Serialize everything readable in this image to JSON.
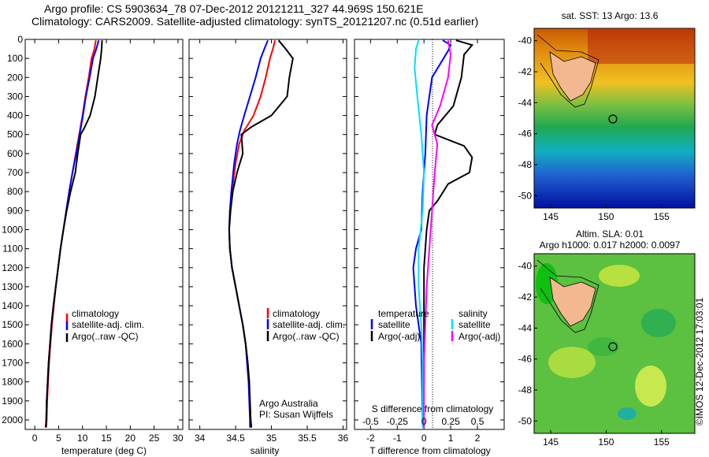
{
  "header": {
    "line1": "Argo profile: CS 5903634_78 07-Dec-2012 20121211_327 44.969S 150.621E",
    "line2": "Climatology: CARS2009. Satellite-adjusted climatology: synTS_20121207.nc (0.51d earlier)"
  },
  "colors": {
    "climatology": "#ff0000",
    "satellite": "#0000ff",
    "argo": "#000000",
    "satellite_salinity": "#00e0ff",
    "argo_salinity_adj": "#ff00ff"
  },
  "chart_data": [
    {
      "type": "line",
      "panel": "temperature",
      "xlabel": "temperature (deg C)",
      "ylabel": "",
      "xlim": [
        -2,
        31
      ],
      "ylim": [
        2050,
        0
      ],
      "x_ticks": [
        "0",
        "5",
        "10",
        "15",
        "20",
        "25",
        "30"
      ],
      "x_tick_values": [
        0,
        5,
        10,
        15,
        20,
        25,
        30
      ],
      "y_ticks": [
        "0",
        "100",
        "200",
        "300",
        "400",
        "500",
        "600",
        "700",
        "800",
        "900",
        "1000",
        "1100",
        "1200",
        "1300",
        "1400",
        "1500",
        "1600",
        "1700",
        "1800",
        "1900",
        "2000"
      ],
      "y_tick_values": [
        0,
        100,
        200,
        300,
        400,
        500,
        600,
        700,
        800,
        900,
        1000,
        1100,
        1200,
        1300,
        1400,
        1500,
        1600,
        1700,
        1800,
        1900,
        2000
      ],
      "legend": [
        "climatology",
        "satellite-adj. clim.",
        "Argo(..raw -QC)"
      ],
      "series": [
        {
          "name": "climatology",
          "color": "#ff0000",
          "points": [
            [
              12.8,
              5
            ],
            [
              12.5,
              50
            ],
            [
              11.9,
              100
            ],
            [
              11.3,
              200
            ],
            [
              10.6,
              300
            ],
            [
              10.0,
              400
            ],
            [
              9.3,
              500
            ],
            [
              8.6,
              600
            ],
            [
              7.9,
              700
            ],
            [
              7.2,
              800
            ],
            [
              6.6,
              900
            ],
            [
              6.0,
              1000
            ],
            [
              5.4,
              1100
            ],
            [
              4.9,
              1200
            ],
            [
              4.4,
              1300
            ],
            [
              4.0,
              1400
            ],
            [
              3.6,
              1500
            ],
            [
              3.3,
              1600
            ],
            [
              3.0,
              1700
            ],
            [
              2.8,
              1800
            ],
            [
              2.6,
              1900
            ],
            [
              2.5,
              2000
            ],
            [
              2.4,
              2040
            ]
          ]
        },
        {
          "name": "satellite-adj. clim.",
          "color": "#0000ff",
          "points": [
            [
              13.4,
              5
            ],
            [
              12.9,
              50
            ],
            [
              12.2,
              100
            ],
            [
              11.5,
              200
            ],
            [
              10.7,
              300
            ],
            [
              10.1,
              400
            ],
            [
              9.4,
              500
            ],
            [
              8.7,
              600
            ],
            [
              7.9,
              700
            ],
            [
              7.2,
              800
            ],
            [
              6.6,
              900
            ],
            [
              6.0,
              1000
            ],
            [
              5.4,
              1100
            ],
            [
              4.9,
              1200
            ],
            [
              4.4,
              1300
            ],
            [
              3.9,
              1400
            ],
            [
              3.5,
              1500
            ],
            [
              3.2,
              1600
            ],
            [
              2.9,
              1700
            ],
            [
              2.7,
              1800
            ],
            [
              2.5,
              1900
            ],
            [
              2.4,
              2000
            ],
            [
              2.3,
              2040
            ]
          ]
        },
        {
          "name": "Argo(..raw -QC)",
          "color": "#000000",
          "points": [
            [
              14.1,
              5
            ],
            [
              14.0,
              50
            ],
            [
              13.8,
              100
            ],
            [
              13.2,
              200
            ],
            [
              12.6,
              300
            ],
            [
              11.6,
              400
            ],
            [
              10.3,
              470
            ],
            [
              9.6,
              500
            ],
            [
              9.0,
              600
            ],
            [
              8.5,
              700
            ],
            [
              7.5,
              800
            ],
            [
              6.7,
              900
            ],
            [
              6.0,
              1000
            ],
            [
              5.4,
              1100
            ],
            [
              4.9,
              1200
            ],
            [
              4.4,
              1300
            ],
            [
              3.9,
              1400
            ],
            [
              3.5,
              1500
            ],
            [
              3.2,
              1600
            ],
            [
              2.9,
              1700
            ],
            [
              2.7,
              1800
            ],
            [
              2.5,
              1900
            ],
            [
              2.4,
              2000
            ],
            [
              2.3,
              2040
            ]
          ]
        }
      ]
    },
    {
      "type": "line",
      "panel": "salinity",
      "xlabel": "salinity",
      "ylabel": "",
      "xlim": [
        33.85,
        36.05
      ],
      "ylim": [
        2050,
        0
      ],
      "x_ticks": [
        "34",
        "34.5",
        "35",
        "35.5",
        "36"
      ],
      "x_tick_values": [
        34,
        34.5,
        35,
        35.5,
        36
      ],
      "legend": [
        "climatology",
        "satellite-adj. clim.",
        "Argo(..raw -QC)"
      ],
      "annotations": [
        "Argo Australia",
        "PI: Susan Wijffels"
      ],
      "series": [
        {
          "name": "climatology",
          "color": "#ff0000",
          "points": [
            [
              35.05,
              5
            ],
            [
              35.02,
              50
            ],
            [
              34.98,
              100
            ],
            [
              34.92,
              200
            ],
            [
              34.85,
              300
            ],
            [
              34.75,
              400
            ],
            [
              34.62,
              480
            ],
            [
              34.55,
              550
            ],
            [
              34.5,
              650
            ],
            [
              34.45,
              800
            ],
            [
              34.42,
              900
            ],
            [
              34.41,
              1000
            ],
            [
              34.42,
              1100
            ],
            [
              34.45,
              1200
            ],
            [
              34.5,
              1300
            ],
            [
              34.55,
              1400
            ],
            [
              34.6,
              1500
            ],
            [
              34.64,
              1600
            ],
            [
              34.67,
              1700
            ],
            [
              34.69,
              1800
            ],
            [
              34.7,
              1900
            ],
            [
              34.71,
              2000
            ],
            [
              34.72,
              2040
            ]
          ]
        },
        {
          "name": "satellite-adj. clim.",
          "color": "#0000ff",
          "points": [
            [
              34.95,
              5
            ],
            [
              34.9,
              50
            ],
            [
              34.85,
              100
            ],
            [
              34.78,
              200
            ],
            [
              34.7,
              300
            ],
            [
              34.62,
              400
            ],
            [
              34.56,
              480
            ],
            [
              34.52,
              550
            ],
            [
              34.48,
              650
            ],
            [
              34.44,
              800
            ],
            [
              34.42,
              900
            ],
            [
              34.41,
              1000
            ],
            [
              34.42,
              1100
            ],
            [
              34.45,
              1200
            ],
            [
              34.5,
              1300
            ],
            [
              34.55,
              1400
            ],
            [
              34.6,
              1500
            ],
            [
              34.64,
              1600
            ],
            [
              34.66,
              1700
            ],
            [
              34.68,
              1800
            ],
            [
              34.69,
              1900
            ],
            [
              34.7,
              2000
            ],
            [
              34.7,
              2040
            ]
          ]
        },
        {
          "name": "Argo(..raw -QC)",
          "color": "#000000",
          "points": [
            [
              35.1,
              5
            ],
            [
              35.2,
              50
            ],
            [
              35.3,
              100
            ],
            [
              35.25,
              200
            ],
            [
              35.22,
              300
            ],
            [
              35.0,
              400
            ],
            [
              34.72,
              460
            ],
            [
              34.58,
              500
            ],
            [
              34.6,
              600
            ],
            [
              34.52,
              700
            ],
            [
              34.46,
              800
            ],
            [
              34.43,
              900
            ],
            [
              34.41,
              1000
            ],
            [
              34.42,
              1100
            ],
            [
              34.45,
              1200
            ],
            [
              34.5,
              1300
            ],
            [
              34.55,
              1400
            ],
            [
              34.6,
              1500
            ],
            [
              34.64,
              1600
            ],
            [
              34.67,
              1700
            ],
            [
              34.69,
              1800
            ],
            [
              34.7,
              1900
            ],
            [
              34.71,
              2000
            ],
            [
              34.72,
              2040
            ]
          ]
        }
      ]
    },
    {
      "type": "line",
      "panel": "difference",
      "xlabel": "T difference from climatology",
      "top_axis_label": "S difference from climatology",
      "xlim": [
        -2.6,
        3.0
      ],
      "ylim": [
        2050,
        0
      ],
      "x_ticks": [
        "-2",
        "-1",
        "0",
        "1",
        "2"
      ],
      "x_tick_values": [
        -2,
        -1,
        0,
        1,
        2
      ],
      "top_ticks": [
        "-0.5",
        "-0.25",
        "0",
        "0.25",
        "0.5"
      ],
      "top_tick_values": [
        -2,
        -1,
        0,
        1,
        2
      ],
      "legend_left_title": "temperature",
      "legend_right_title": "salinity",
      "legend": [
        "satellite",
        "Argo(-adj)",
        "satellite",
        "Argo(-adj)"
      ],
      "series": [
        {
          "name": "satellite",
          "color": "#0000ff",
          "points": [
            [
              0.7,
              5
            ],
            [
              1.0,
              30
            ],
            [
              0.9,
              60
            ],
            [
              0.3,
              200
            ],
            [
              0.1,
              400
            ],
            [
              0.05,
              600
            ],
            [
              -0.05,
              800
            ],
            [
              -0.1,
              1000
            ],
            [
              -0.3,
              1100
            ],
            [
              -0.4,
              1200
            ],
            [
              -0.3,
              1400
            ],
            [
              -0.1,
              1600
            ],
            [
              -0.05,
              2040
            ]
          ]
        },
        {
          "name": "Argo(-adj)",
          "color": "#000000",
          "points": [
            [
              1.2,
              5
            ],
            [
              1.8,
              30
            ],
            [
              1.5,
              80
            ],
            [
              1.4,
              200
            ],
            [
              1.1,
              350
            ],
            [
              0.5,
              450
            ],
            [
              0.4,
              500
            ],
            [
              1.5,
              560
            ],
            [
              1.8,
              620
            ],
            [
              1.7,
              700
            ],
            [
              0.9,
              760
            ],
            [
              0.5,
              850
            ],
            [
              0.2,
              900
            ],
            [
              0.1,
              1000
            ],
            [
              0.0,
              1200
            ],
            [
              0.0,
              1400
            ],
            [
              0.0,
              1600
            ],
            [
              0.0,
              1800
            ],
            [
              -0.05,
              2040
            ]
          ]
        },
        {
          "name": "satellite",
          "color": "#00e0ff",
          "points": [
            [
              -0.2,
              5
            ],
            [
              -0.3,
              50
            ],
            [
              -0.35,
              150
            ],
            [
              -0.25,
              300
            ],
            [
              -0.1,
              500
            ],
            [
              0.0,
              700
            ],
            [
              -0.05,
              900
            ],
            [
              -0.2,
              1100
            ],
            [
              -0.2,
              1300
            ],
            [
              -0.1,
              1500
            ],
            [
              -0.05,
              1700
            ],
            [
              -0.05,
              2040
            ]
          ]
        },
        {
          "name": "Argo(-adj)",
          "color": "#ff00ff",
          "points": [
            [
              0.9,
              5
            ],
            [
              1.0,
              80
            ],
            [
              0.9,
              200
            ],
            [
              0.6,
              350
            ],
            [
              0.3,
              450
            ],
            [
              0.5,
              550
            ],
            [
              0.4,
              700
            ],
            [
              0.3,
              900
            ],
            [
              0.2,
              1100
            ],
            [
              0.1,
              1300
            ],
            [
              0.05,
              1500
            ],
            [
              0.0,
              1700
            ],
            [
              0.0,
              2040
            ]
          ]
        }
      ]
    },
    {
      "type": "heatmap",
      "panel": "sst_map",
      "title": "sat. SST: 13 Argo: 13.6",
      "x_ticks": [
        "145",
        "150",
        "155"
      ],
      "y_ticks": [
        "-40",
        "-42",
        "-44",
        "-46",
        "-48",
        "-50"
      ],
      "xlim": [
        143.5,
        158
      ],
      "ylim": [
        -50.8,
        -39.2
      ],
      "float_position": [
        150.6,
        -45.0
      ]
    },
    {
      "type": "heatmap",
      "panel": "sla_map",
      "title": "Altim. SLA: 0.01",
      "subtitle": "Argo h1000: 0.017 h2000: 0.0097",
      "x_ticks": [
        "145",
        "150",
        "155"
      ],
      "y_ticks": [
        "-40",
        "-42",
        "-44",
        "-46",
        "-48",
        "-50"
      ],
      "xlim": [
        143.5,
        158
      ],
      "ylim": [
        -50.8,
        -39.2
      ],
      "float_position": [
        150.6,
        -45.0
      ]
    }
  ],
  "footer": {
    "credit": "©IMOS 12-Dec-2012 17:03:01"
  }
}
